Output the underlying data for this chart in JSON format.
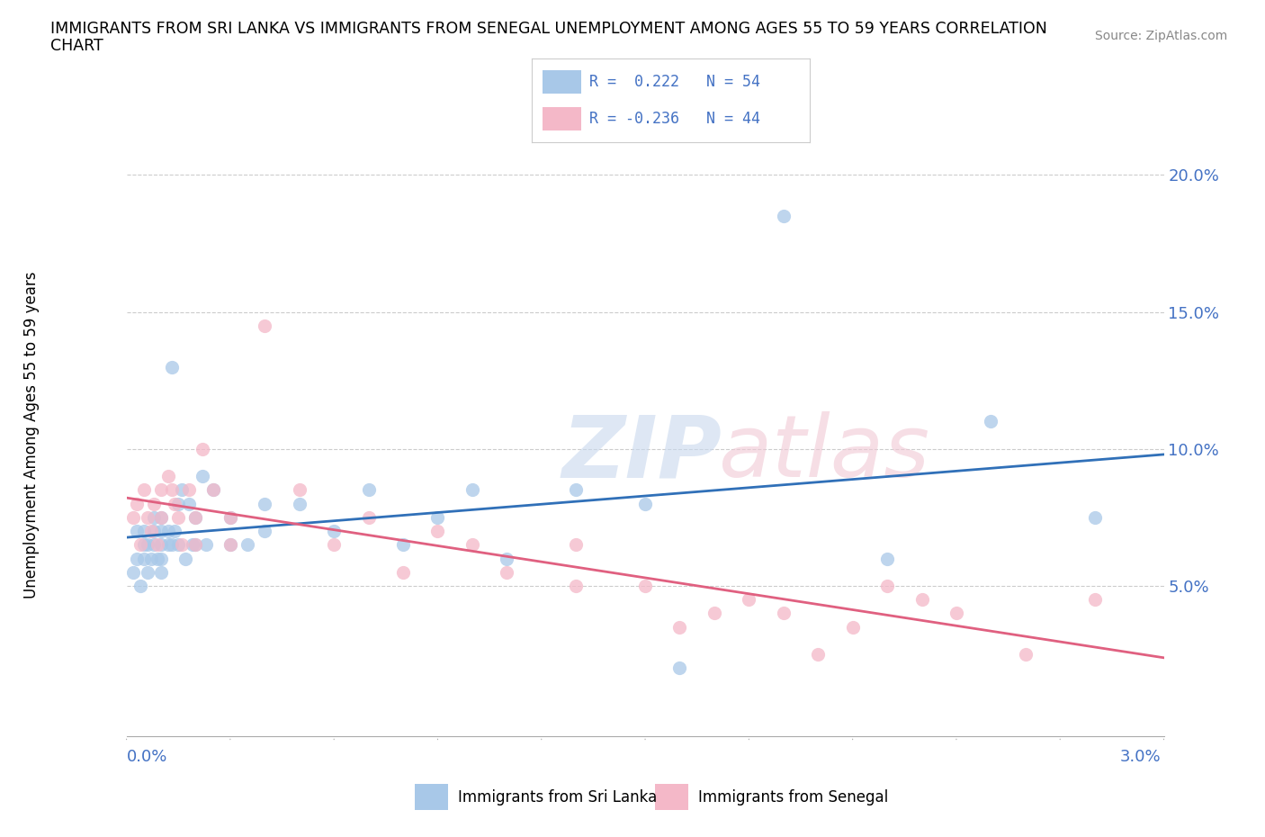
{
  "title_line1": "IMMIGRANTS FROM SRI LANKA VS IMMIGRANTS FROM SENEGAL UNEMPLOYMENT AMONG AGES 55 TO 59 YEARS CORRELATION",
  "title_line2": "CHART",
  "source": "Source: ZipAtlas.com",
  "ylabel": "Unemployment Among Ages 55 to 59 years",
  "yticks": [
    0.0,
    0.05,
    0.1,
    0.15,
    0.2
  ],
  "ytick_labels": [
    "",
    "5.0%",
    "10.0%",
    "15.0%",
    "20.0%"
  ],
  "xmin": 0.0,
  "xmax": 0.03,
  "ymin": -0.005,
  "ymax": 0.215,
  "legend_sri_lanka": "Immigrants from Sri Lanka",
  "legend_senegal": "Immigrants from Senegal",
  "r_sri_lanka": 0.222,
  "n_sri_lanka": 54,
  "r_senegal": -0.236,
  "n_senegal": 44,
  "color_sri_lanka": "#a8c8e8",
  "color_senegal": "#f4b8c8",
  "color_trendline_sri_lanka": "#3070b8",
  "color_trendline_senegal": "#e06080",
  "sri_lanka_x": [
    0.0002,
    0.0003,
    0.0003,
    0.0004,
    0.0005,
    0.0005,
    0.0005,
    0.0006,
    0.0006,
    0.0007,
    0.0008,
    0.0008,
    0.0008,
    0.0009,
    0.001,
    0.001,
    0.001,
    0.001,
    0.001,
    0.0012,
    0.0012,
    0.0013,
    0.0013,
    0.0014,
    0.0015,
    0.0015,
    0.0016,
    0.0017,
    0.0018,
    0.0019,
    0.002,
    0.002,
    0.0022,
    0.0023,
    0.0025,
    0.003,
    0.003,
    0.0035,
    0.004,
    0.004,
    0.005,
    0.006,
    0.007,
    0.008,
    0.009,
    0.01,
    0.011,
    0.013,
    0.015,
    0.016,
    0.019,
    0.022,
    0.025,
    0.028
  ],
  "sri_lanka_y": [
    0.055,
    0.06,
    0.07,
    0.05,
    0.065,
    0.06,
    0.07,
    0.065,
    0.055,
    0.06,
    0.07,
    0.075,
    0.065,
    0.06,
    0.07,
    0.065,
    0.06,
    0.075,
    0.055,
    0.07,
    0.065,
    0.13,
    0.065,
    0.07,
    0.08,
    0.065,
    0.085,
    0.06,
    0.08,
    0.065,
    0.075,
    0.065,
    0.09,
    0.065,
    0.085,
    0.075,
    0.065,
    0.065,
    0.08,
    0.07,
    0.08,
    0.07,
    0.085,
    0.065,
    0.075,
    0.085,
    0.06,
    0.085,
    0.08,
    0.02,
    0.185,
    0.06,
    0.11,
    0.075
  ],
  "senegal_x": [
    0.0002,
    0.0003,
    0.0004,
    0.0005,
    0.0006,
    0.0007,
    0.0008,
    0.0009,
    0.001,
    0.001,
    0.0012,
    0.0013,
    0.0014,
    0.0015,
    0.0016,
    0.0018,
    0.002,
    0.002,
    0.0022,
    0.0025,
    0.003,
    0.003,
    0.004,
    0.005,
    0.006,
    0.007,
    0.008,
    0.009,
    0.01,
    0.011,
    0.013,
    0.013,
    0.015,
    0.016,
    0.017,
    0.018,
    0.019,
    0.02,
    0.021,
    0.022,
    0.023,
    0.024,
    0.026,
    0.028
  ],
  "senegal_y": [
    0.075,
    0.08,
    0.065,
    0.085,
    0.075,
    0.07,
    0.08,
    0.065,
    0.085,
    0.075,
    0.09,
    0.085,
    0.08,
    0.075,
    0.065,
    0.085,
    0.075,
    0.065,
    0.1,
    0.085,
    0.065,
    0.075,
    0.145,
    0.085,
    0.065,
    0.075,
    0.055,
    0.07,
    0.065,
    0.055,
    0.05,
    0.065,
    0.05,
    0.035,
    0.04,
    0.045,
    0.04,
    0.025,
    0.035,
    0.05,
    0.045,
    0.04,
    0.025,
    0.045
  ]
}
